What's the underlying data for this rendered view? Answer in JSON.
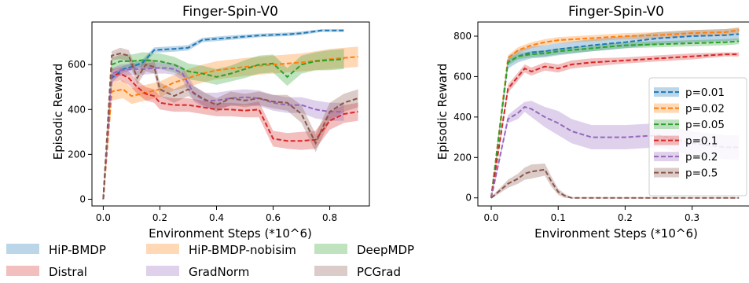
{
  "chart_data": [
    {
      "type": "line",
      "title": "Finger-Spin-V0",
      "xlabel": "Environment Steps (*10^6)",
      "ylabel": "Episodic Reward",
      "xlim": [
        -0.04,
        0.94
      ],
      "ylim": [
        -30,
        790
      ],
      "xticks": [
        0.0,
        0.2,
        0.4,
        0.6,
        0.8
      ],
      "xtick_labels": [
        "0.0",
        "0.2",
        "0.4",
        "0.6",
        "0.8"
      ],
      "yticks": [
        0,
        200,
        400,
        600
      ],
      "ytick_labels": [
        "0",
        "200",
        "400",
        "600"
      ],
      "grid": false,
      "legend": "shared, below both plots",
      "series": [
        {
          "name": "HiP-BMDP",
          "color": "#1f77b4",
          "x": [
            0,
            0.03,
            0.07,
            0.1,
            0.14,
            0.18,
            0.25,
            0.3,
            0.35,
            0.45,
            0.55,
            0.65,
            0.7,
            0.77,
            0.85
          ],
          "y": [
            0,
            540,
            580,
            590,
            610,
            665,
            670,
            675,
            710,
            720,
            730,
            735,
            740,
            752,
            752
          ],
          "band": [
            5,
            20,
            15,
            15,
            15,
            12,
            12,
            12,
            10,
            10,
            8,
            8,
            8,
            6,
            6
          ]
        },
        {
          "name": "HiP-BMDP-nobisim",
          "color": "#ff7f0e",
          "x": [
            0,
            0.03,
            0.07,
            0.1,
            0.15,
            0.2,
            0.25,
            0.3,
            0.35,
            0.4,
            0.5,
            0.6,
            0.7,
            0.8,
            0.9
          ],
          "y": [
            0,
            480,
            490,
            460,
            475,
            490,
            520,
            540,
            560,
            575,
            590,
            600,
            610,
            625,
            635
          ],
          "band": [
            5,
            40,
            40,
            35,
            35,
            35,
            35,
            40,
            40,
            40,
            40,
            40,
            40,
            45,
            45
          ]
        },
        {
          "name": "DeepMDP",
          "color": "#2ca02c",
          "x": [
            0,
            0.03,
            0.06,
            0.1,
            0.14,
            0.2,
            0.25,
            0.3,
            0.35,
            0.4,
            0.45,
            0.5,
            0.55,
            0.6,
            0.65,
            0.7,
            0.75,
            0.8,
            0.85
          ],
          "y": [
            0,
            600,
            615,
            615,
            620,
            615,
            600,
            570,
            560,
            545,
            560,
            580,
            600,
            605,
            545,
            600,
            615,
            620,
            625
          ],
          "band": [
            5,
            30,
            30,
            30,
            35,
            35,
            35,
            35,
            35,
            35,
            35,
            40,
            40,
            40,
            40,
            40,
            40,
            45,
            45
          ]
        },
        {
          "name": "Distral",
          "color": "#d62728",
          "x": [
            0,
            0.03,
            0.06,
            0.09,
            0.12,
            0.15,
            0.18,
            0.2,
            0.25,
            0.3,
            0.35,
            0.4,
            0.45,
            0.5,
            0.55,
            0.6,
            0.65,
            0.7,
            0.75,
            0.8,
            0.85,
            0.9
          ],
          "y": [
            0,
            550,
            560,
            540,
            500,
            470,
            460,
            430,
            420,
            420,
            410,
            400,
            400,
            395,
            400,
            270,
            260,
            260,
            265,
            350,
            380,
            390
          ],
          "band": [
            5,
            30,
            30,
            30,
            30,
            30,
            30,
            30,
            30,
            30,
            30,
            30,
            30,
            30,
            35,
            35,
            35,
            40,
            40,
            40,
            40,
            40
          ]
        },
        {
          "name": "GradNorm",
          "color": "#9467bd",
          "x": [
            0,
            0.03,
            0.06,
            0.1,
            0.14,
            0.18,
            0.22,
            0.25,
            0.28,
            0.32,
            0.36,
            0.4,
            0.45,
            0.5,
            0.55,
            0.6,
            0.65,
            0.7,
            0.75,
            0.8,
            0.85
          ],
          "y": [
            0,
            560,
            575,
            580,
            580,
            585,
            585,
            580,
            560,
            470,
            440,
            440,
            450,
            455,
            450,
            430,
            420,
            420,
            400,
            390,
            390
          ],
          "band": [
            5,
            25,
            25,
            25,
            25,
            25,
            25,
            25,
            30,
            35,
            35,
            35,
            35,
            35,
            35,
            35,
            35,
            35,
            40,
            40,
            40
          ]
        },
        {
          "name": "PCGrad",
          "color": "#8c564b",
          "x": [
            0,
            0.03,
            0.06,
            0.09,
            0.12,
            0.15,
            0.18,
            0.2,
            0.25,
            0.3,
            0.35,
            0.4,
            0.45,
            0.5,
            0.55,
            0.6,
            0.65,
            0.7,
            0.75,
            0.8,
            0.85,
            0.9
          ],
          "y": [
            0,
            640,
            650,
            640,
            540,
            600,
            590,
            490,
            460,
            490,
            450,
            420,
            450,
            440,
            450,
            435,
            430,
            380,
            250,
            390,
            430,
            450
          ],
          "band": [
            5,
            20,
            25,
            25,
            30,
            30,
            30,
            30,
            30,
            30,
            30,
            30,
            30,
            30,
            30,
            30,
            35,
            40,
            40,
            40,
            40,
            40
          ]
        }
      ]
    },
    {
      "type": "line",
      "title": "Finger-Spin-V0",
      "xlabel": "Environment Steps (*10^6)",
      "ylabel": "Episodic Reward",
      "xlim": [
        -0.02,
        0.385
      ],
      "ylim": [
        -40,
        870
      ],
      "xticks": [
        0.0,
        0.1,
        0.2,
        0.3
      ],
      "xtick_labels": [
        "0.0",
        "0.1",
        "0.2",
        "0.3"
      ],
      "yticks": [
        0,
        200,
        400,
        600,
        800
      ],
      "ytick_labels": [
        "0",
        "200",
        "400",
        "600",
        "800"
      ],
      "grid": false,
      "legend": "center-right",
      "series": [
        {
          "name": "p=0.01",
          "color": "#1f77b4",
          "x": [
            0,
            0.025,
            0.04,
            0.06,
            0.08,
            0.1,
            0.15,
            0.2,
            0.25,
            0.3,
            0.35,
            0.37
          ],
          "y": [
            0,
            670,
            700,
            720,
            725,
            735,
            755,
            770,
            790,
            800,
            805,
            810
          ],
          "band": [
            5,
            30,
            30,
            30,
            30,
            30,
            30,
            30,
            30,
            30,
            30,
            30
          ]
        },
        {
          "name": "p=0.02",
          "color": "#ff7f0e",
          "x": [
            0,
            0.025,
            0.04,
            0.06,
            0.08,
            0.1,
            0.15,
            0.2,
            0.25,
            0.3,
            0.35,
            0.37
          ],
          "y": [
            0,
            690,
            730,
            755,
            770,
            780,
            790,
            800,
            805,
            815,
            820,
            830
          ],
          "band": [
            5,
            15,
            15,
            15,
            15,
            15,
            15,
            15,
            15,
            15,
            15,
            15
          ]
        },
        {
          "name": "p=0.05",
          "color": "#2ca02c",
          "x": [
            0,
            0.025,
            0.04,
            0.06,
            0.08,
            0.1,
            0.15,
            0.2,
            0.25,
            0.3,
            0.35,
            0.37
          ],
          "y": [
            0,
            670,
            700,
            710,
            715,
            725,
            740,
            755,
            760,
            765,
            770,
            775
          ],
          "band": [
            5,
            15,
            15,
            15,
            15,
            15,
            15,
            15,
            15,
            15,
            15,
            15
          ]
        },
        {
          "name": "p=0.1",
          "color": "#d62728",
          "x": [
            0,
            0.025,
            0.04,
            0.05,
            0.06,
            0.08,
            0.1,
            0.12,
            0.15,
            0.2,
            0.25,
            0.3,
            0.35,
            0.37
          ],
          "y": [
            0,
            540,
            600,
            640,
            625,
            650,
            640,
            660,
            670,
            680,
            690,
            700,
            710,
            710
          ],
          "band": [
            5,
            20,
            20,
            20,
            20,
            20,
            20,
            20,
            20,
            15,
            15,
            15,
            10,
            10
          ]
        },
        {
          "name": "p=0.2",
          "color": "#9467bd",
          "x": [
            0,
            0.025,
            0.04,
            0.05,
            0.06,
            0.08,
            0.1,
            0.12,
            0.15,
            0.2,
            0.25,
            0.3,
            0.35,
            0.37
          ],
          "y": [
            0,
            390,
            420,
            450,
            440,
            400,
            370,
            330,
            300,
            300,
            310,
            270,
            250,
            250
          ],
          "band": [
            5,
            20,
            30,
            25,
            40,
            50,
            60,
            60,
            60,
            60,
            60,
            60,
            60,
            60
          ]
        },
        {
          "name": "p=0.5",
          "color": "#8c564b",
          "x": [
            0,
            0.025,
            0.04,
            0.05,
            0.06,
            0.08,
            0.09,
            0.1,
            0.11,
            0.12,
            0.15,
            0.2,
            0.25,
            0.3,
            0.35,
            0.37
          ],
          "y": [
            0,
            70,
            95,
            120,
            130,
            140,
            80,
            30,
            10,
            0,
            0,
            0,
            0,
            0,
            0,
            0
          ],
          "band": [
            5,
            20,
            25,
            30,
            35,
            30,
            25,
            15,
            10,
            3,
            3,
            3,
            3,
            3,
            3,
            3
          ]
        }
      ]
    }
  ]
}
